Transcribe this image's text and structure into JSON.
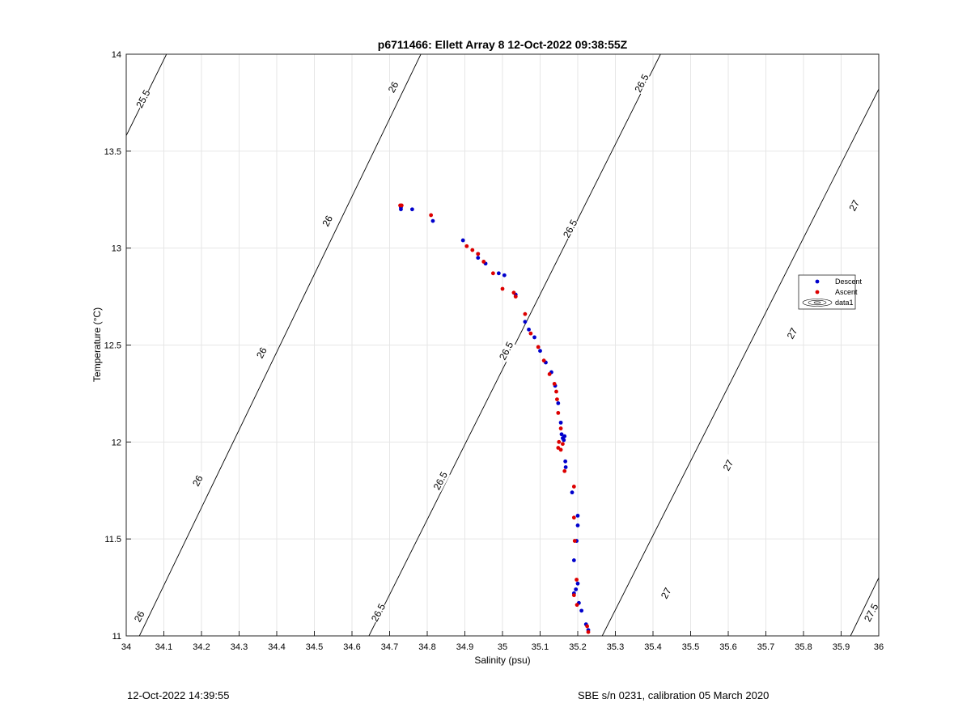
{
  "chart_data": {
    "type": "scatter",
    "title": "p6711466: Ellett Array 8 12-Oct-2022 09:38:55Z",
    "xlabel": "Salinity (psu)",
    "ylabel": "Temperature (°C)",
    "xlim": [
      34,
      36
    ],
    "ylim": [
      11,
      14
    ],
    "grid": true,
    "x_ticks": [
      "34",
      "34.1",
      "34.2",
      "34.3",
      "34.4",
      "34.5",
      "34.6",
      "34.7",
      "34.8",
      "34.9",
      "35",
      "35.1",
      "35.2",
      "35.3",
      "35.4",
      "35.5",
      "35.6",
      "35.7",
      "35.8",
      "35.9",
      "36"
    ],
    "y_ticks": [
      "11",
      "11.5",
      "12",
      "12.5",
      "13",
      "13.5",
      "14"
    ],
    "legend_position": "right",
    "legend": [
      "Descent",
      "Ascent",
      "data1"
    ],
    "contours": [
      {
        "level": 25.5,
        "label": "25.5",
        "points": [
          [
            34.0,
            13.58
          ],
          [
            34.107,
            14.0
          ]
        ]
      },
      {
        "level": 26,
        "label": "26",
        "points": [
          [
            34.035,
            11.0
          ],
          [
            34.783,
            14.0
          ]
        ]
      },
      {
        "level": 26.5,
        "label": "26.5",
        "points": [
          [
            34.645,
            11.0
          ],
          [
            35.42,
            14.0
          ]
        ]
      },
      {
        "level": 27,
        "label": "27",
        "points": [
          [
            35.265,
            11.0
          ],
          [
            36.0,
            13.82
          ]
        ]
      },
      {
        "level": 27.5,
        "label": "27.5",
        "points": [
          [
            35.925,
            11.0
          ],
          [
            36.0,
            11.3
          ]
        ]
      }
    ],
    "contour_labels": [
      {
        "text": "25.5",
        "x": 34.045,
        "y": 13.77
      },
      {
        "text": "26",
        "x": 34.71,
        "y": 13.83
      },
      {
        "text": "26",
        "x": 34.535,
        "y": 13.14
      },
      {
        "text": "26",
        "x": 34.36,
        "y": 12.46
      },
      {
        "text": "26",
        "x": 34.19,
        "y": 11.8
      },
      {
        "text": "26",
        "x": 34.035,
        "y": 11.1
      },
      {
        "text": "26.5",
        "x": 35.37,
        "y": 13.85
      },
      {
        "text": "26.5",
        "x": 35.18,
        "y": 13.1
      },
      {
        "text": "26.5",
        "x": 35.01,
        "y": 12.47
      },
      {
        "text": "26.5",
        "x": 34.835,
        "y": 11.8
      },
      {
        "text": "26.5",
        "x": 34.67,
        "y": 11.12
      },
      {
        "text": "27",
        "x": 35.935,
        "y": 13.22
      },
      {
        "text": "27",
        "x": 35.77,
        "y": 12.56
      },
      {
        "text": "27",
        "x": 35.6,
        "y": 11.88
      },
      {
        "text": "27",
        "x": 35.435,
        "y": 11.22
      },
      {
        "text": "27.5",
        "x": 35.98,
        "y": 11.12
      }
    ],
    "series": [
      {
        "name": "Descent",
        "color": "#0000cc",
        "points": [
          [
            34.73,
            13.21
          ],
          [
            34.73,
            13.2
          ],
          [
            34.76,
            13.2
          ],
          [
            34.815,
            13.14
          ],
          [
            34.895,
            13.04
          ],
          [
            34.935,
            12.97
          ],
          [
            34.935,
            12.95
          ],
          [
            34.955,
            12.92
          ],
          [
            34.99,
            12.87
          ],
          [
            35.005,
            12.86
          ],
          [
            35.035,
            12.76
          ],
          [
            35.06,
            12.62
          ],
          [
            35.07,
            12.58
          ],
          [
            35.085,
            12.54
          ],
          [
            35.1,
            12.47
          ],
          [
            35.115,
            12.41
          ],
          [
            35.13,
            12.36
          ],
          [
            35.14,
            12.29
          ],
          [
            35.148,
            12.2
          ],
          [
            35.155,
            12.1
          ],
          [
            35.157,
            12.04
          ],
          [
            35.16,
            12.02
          ],
          [
            35.163,
            12.01
          ],
          [
            35.165,
            12.03
          ],
          [
            35.167,
            11.9
          ],
          [
            35.168,
            11.87
          ],
          [
            35.185,
            11.74
          ],
          [
            35.2,
            11.62
          ],
          [
            35.2,
            11.57
          ],
          [
            35.197,
            11.49
          ],
          [
            35.19,
            11.39
          ],
          [
            35.2,
            11.27
          ],
          [
            35.195,
            11.24
          ],
          [
            35.19,
            11.22
          ],
          [
            35.203,
            11.17
          ],
          [
            35.21,
            11.13
          ],
          [
            35.222,
            11.06
          ],
          [
            35.228,
            11.03
          ]
        ]
      },
      {
        "name": "Ascent",
        "color": "#dd0000",
        "points": [
          [
            34.728,
            13.22
          ],
          [
            34.732,
            13.22
          ],
          [
            34.81,
            13.17
          ],
          [
            34.905,
            13.01
          ],
          [
            34.92,
            12.99
          ],
          [
            34.935,
            12.97
          ],
          [
            34.95,
            12.93
          ],
          [
            34.975,
            12.87
          ],
          [
            35.0,
            12.79
          ],
          [
            35.03,
            12.77
          ],
          [
            35.035,
            12.75
          ],
          [
            35.06,
            12.66
          ],
          [
            35.075,
            12.56
          ],
          [
            35.095,
            12.49
          ],
          [
            35.11,
            12.42
          ],
          [
            35.125,
            12.35
          ],
          [
            35.138,
            12.3
          ],
          [
            35.143,
            12.26
          ],
          [
            35.145,
            12.22
          ],
          [
            35.148,
            12.15
          ],
          [
            35.155,
            12.07
          ],
          [
            35.15,
            12.0
          ],
          [
            35.148,
            11.97
          ],
          [
            35.155,
            11.96
          ],
          [
            35.16,
            11.99
          ],
          [
            35.165,
            11.85
          ],
          [
            35.19,
            11.77
          ],
          [
            35.19,
            11.61
          ],
          [
            35.192,
            11.49
          ],
          [
            35.197,
            11.29
          ],
          [
            35.19,
            11.21
          ],
          [
            35.198,
            11.16
          ],
          [
            35.225,
            11.05
          ],
          [
            35.228,
            11.02
          ]
        ]
      }
    ]
  },
  "footer": {
    "timestamp": "12-Oct-2022 14:39:55",
    "calibration": "SBE s/n 0231, calibration 05 March 2020"
  }
}
